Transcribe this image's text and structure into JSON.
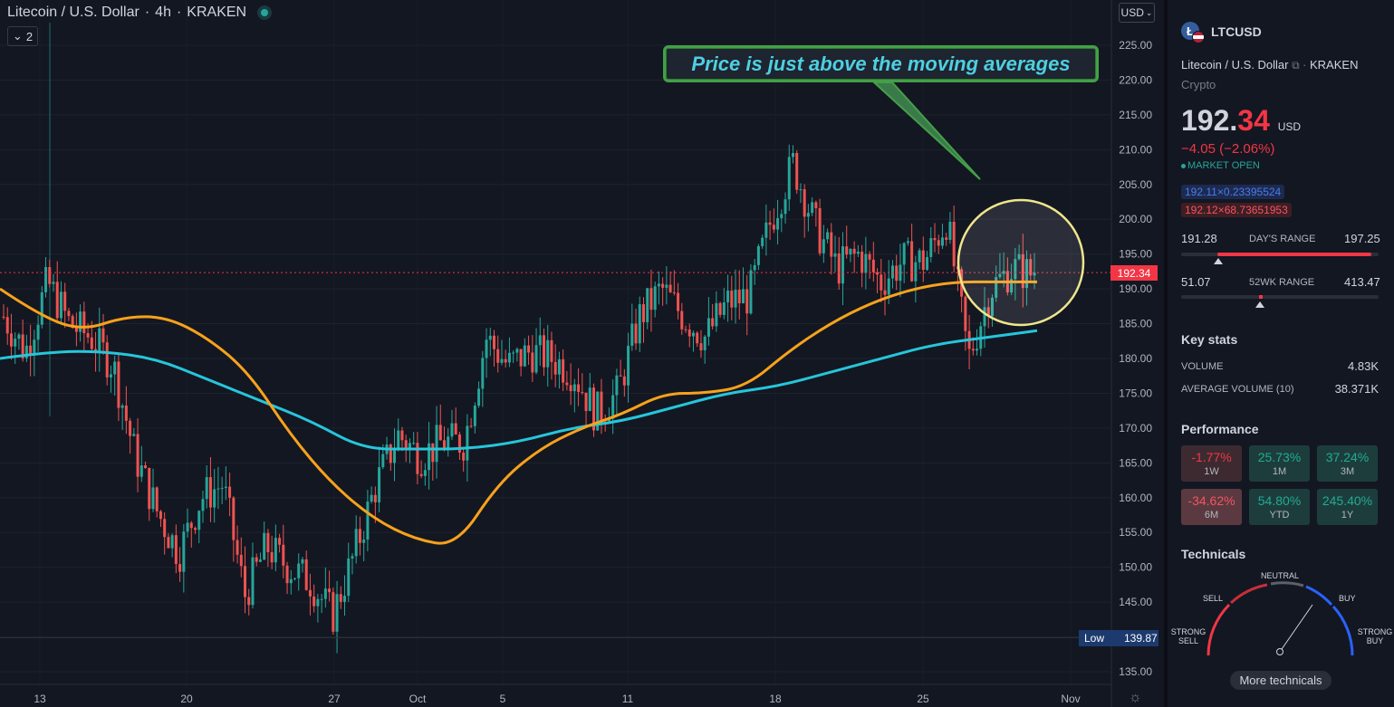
{
  "header": {
    "symbol_name": "Litecoin / U.S. Dollar",
    "interval": "4h",
    "exchange": "KRAKEN",
    "collapse_count": "2",
    "currency": "USD"
  },
  "annotation": {
    "text": "Price is just above the moving averages"
  },
  "price_tag": "192.34",
  "low_tag": {
    "label": "Low",
    "value": "139.87"
  },
  "colors": {
    "up": "#26a69a",
    "down": "#ef5350",
    "ma_fast": "#f7a21b",
    "ma_slow": "#26c6da",
    "price_line": "#f23645",
    "annotation_border": "#43a047",
    "annotation_text": "#4dd0e1",
    "highlight_circle": "#f0e68c"
  },
  "chart_data": {
    "type": "candlestick",
    "y_axis_labels": [
      "225.00",
      "220.00",
      "215.00",
      "210.00",
      "205.00",
      "200.00",
      "195.00",
      "190.00",
      "185.00",
      "180.00",
      "175.00",
      "170.00",
      "165.00",
      "160.00",
      "155.00",
      "150.00",
      "145.00",
      "140.00",
      "135.00"
    ],
    "y_range": [
      133,
      228
    ],
    "x_axis_labels": [
      "13",
      "20",
      "27",
      "Oct",
      "5",
      "11",
      "18",
      "25",
      "Nov"
    ],
    "last_price": 192.34,
    "low": 139.87,
    "close_path": [
      {
        "d": "13",
        "c": 186
      },
      {
        "d": "15",
        "c": 181
      },
      {
        "d": "16",
        "c": 191
      },
      {
        "d": "17",
        "c": 185
      },
      {
        "d": "18",
        "c": 183
      },
      {
        "d": "19",
        "c": 179
      },
      {
        "d": "20",
        "c": 166
      },
      {
        "d": "21",
        "c": 158
      },
      {
        "d": "22",
        "c": 152
      },
      {
        "d": "23",
        "c": 160
      },
      {
        "d": "24",
        "c": 162
      },
      {
        "d": "25",
        "c": 146
      },
      {
        "d": "26",
        "c": 153
      },
      {
        "d": "27",
        "c": 150
      },
      {
        "d": "28",
        "c": 148
      },
      {
        "d": "29",
        "c": 143
      },
      {
        "d": "30",
        "c": 152
      },
      {
        "d": "Oct",
        "c": 162
      },
      {
        "d": "2",
        "c": 169
      },
      {
        "d": "3",
        "c": 166
      },
      {
        "d": "4",
        "c": 168
      },
      {
        "d": "5",
        "c": 168
      },
      {
        "d": "6",
        "c": 183
      },
      {
        "d": "7",
        "c": 179
      },
      {
        "d": "8",
        "c": 181
      },
      {
        "d": "9",
        "c": 180
      },
      {
        "d": "10",
        "c": 178
      },
      {
        "d": "11",
        "c": 172
      },
      {
        "d": "12",
        "c": 175
      },
      {
        "d": "13",
        "c": 186
      },
      {
        "d": "14",
        "c": 190
      },
      {
        "d": "15",
        "c": 186
      },
      {
        "d": "16",
        "c": 183
      },
      {
        "d": "17",
        "c": 188
      },
      {
        "d": "18",
        "c": 189
      },
      {
        "d": "19",
        "c": 200
      },
      {
        "d": "20",
        "c": 208
      },
      {
        "d": "21",
        "c": 199
      },
      {
        "d": "22",
        "c": 193
      },
      {
        "d": "23",
        "c": 195
      },
      {
        "d": "24",
        "c": 191
      },
      {
        "d": "25",
        "c": 194
      },
      {
        "d": "26",
        "c": 194
      },
      {
        "d": "27",
        "c": 200
      },
      {
        "d": "28",
        "c": 180
      },
      {
        "d": "29",
        "c": 190
      },
      {
        "d": "30",
        "c": 193
      },
      {
        "d": "31",
        "c": 192
      }
    ],
    "series": [
      {
        "color": "#f7a21b",
        "values": [
          190,
          186,
          184,
          186,
          186,
          183,
          178,
          169,
          162,
          157,
          154,
          153,
          162,
          167,
          170,
          172,
          175,
          175,
          176,
          181,
          185,
          188,
          190,
          191,
          191,
          191
        ]
      },
      {
        "color": "#26c6da",
        "values": [
          180,
          181,
          181,
          180,
          177,
          174,
          171,
          167,
          167,
          167,
          168,
          170,
          171,
          173,
          175,
          176,
          178,
          180,
          182,
          183,
          184
        ]
      }
    ]
  },
  "sidebar": {
    "ticker": "LTCUSD",
    "icon_letter": "Ł",
    "full_name": "Litecoin / U.S. Dollar",
    "external_icon": "external-link-icon",
    "exchange": "KRAKEN",
    "category": "Crypto",
    "price_main": "192.",
    "price_tail": "34",
    "price_currency": "USD",
    "change": "−4.05 (−2.06%)",
    "market_status": "MARKET OPEN",
    "bid": "192.11×0.23395524",
    "ask": "192.12×68.73651953",
    "days_range": {
      "low": "191.28",
      "label": "DAY'S RANGE",
      "high": "197.25"
    },
    "wk52_range": {
      "low": "51.07",
      "label": "52WK RANGE",
      "high": "413.47"
    },
    "key_stats": {
      "title": "Key stats",
      "volume_label": "VOLUME",
      "volume_value": "4.83K",
      "avg_volume_label": "AVERAGE VOLUME (10)",
      "avg_volume_value": "38.371K"
    },
    "performance": {
      "title": "Performance",
      "items": [
        {
          "value": "-1.77%",
          "label": "1W"
        },
        {
          "value": "25.73%",
          "label": "1M"
        },
        {
          "value": "37.24%",
          "label": "3M"
        },
        {
          "value": "-34.62%",
          "label": "6M"
        },
        {
          "value": "54.80%",
          "label": "YTD"
        },
        {
          "value": "245.40%",
          "label": "1Y"
        }
      ]
    },
    "technicals": {
      "title": "Technicals",
      "strong_sell_1": "STRONG",
      "strong_sell_2": "SELL",
      "sell": "SELL",
      "neutral": "NEUTRAL",
      "buy": "BUY",
      "strong_buy_1": "STRONG",
      "strong_buy_2": "BUY",
      "more_button": "More technicals"
    }
  }
}
